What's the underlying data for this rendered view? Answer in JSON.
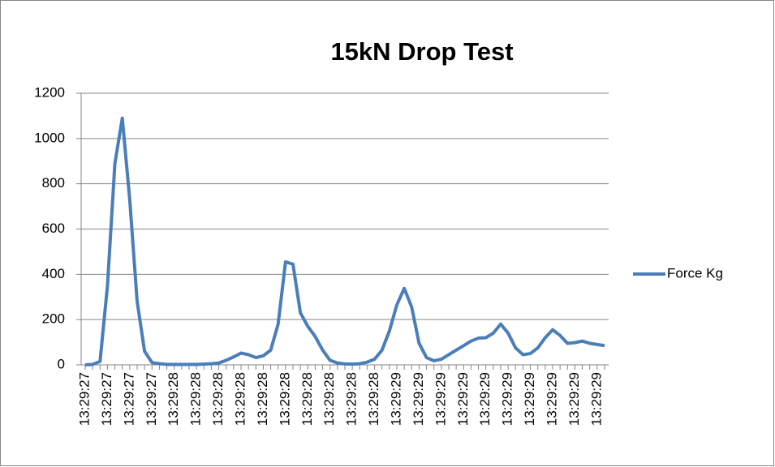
{
  "chart_data": {
    "type": "line",
    "title": "15kN Drop Test",
    "categories": [
      "13:29:27",
      null,
      null,
      "13:29:27",
      null,
      null,
      "13:29:27",
      null,
      null,
      "13:29:27",
      null,
      null,
      "13:29:28",
      null,
      null,
      "13:29:28",
      null,
      null,
      "13:29:28",
      null,
      null,
      "13:29:28",
      null,
      null,
      "13:29:28",
      null,
      null,
      "13:29:28",
      null,
      null,
      "13:29:28",
      null,
      null,
      "13:29:28",
      null,
      null,
      "13:29:28",
      null,
      null,
      "13:29:28",
      null,
      null,
      "13:29:29",
      null,
      null,
      "13:29:29",
      null,
      null,
      "13:29:29",
      null,
      null,
      "13:29:29",
      null,
      null,
      "13:29:29",
      null,
      null,
      "13:29:29",
      null,
      null,
      "13:29:29",
      null,
      null,
      "13:29:29",
      null,
      null,
      "13:29:29",
      null,
      null,
      "13:29:29",
      null
    ],
    "series": [
      {
        "name": "Force Kg",
        "color": "#4a7ebb",
        "values": [
          0,
          2,
          15,
          350,
          890,
          1090,
          730,
          280,
          60,
          10,
          5,
          2,
          2,
          2,
          2,
          2,
          3,
          5,
          8,
          20,
          35,
          52,
          45,
          32,
          40,
          65,
          180,
          455,
          445,
          230,
          170,
          125,
          65,
          20,
          8,
          4,
          3,
          5,
          12,
          25,
          65,
          150,
          265,
          338,
          255,
          95,
          32,
          18,
          25,
          45,
          65,
          85,
          105,
          118,
          120,
          140,
          180,
          140,
          75,
          45,
          50,
          75,
          120,
          155,
          130,
          95,
          98,
          105,
          95,
          90,
          85
        ]
      }
    ],
    "ylim": [
      0,
      1200
    ],
    "yticks": [
      0,
      200,
      400,
      600,
      800,
      1000,
      1200
    ],
    "grid": true,
    "legend": "right"
  }
}
